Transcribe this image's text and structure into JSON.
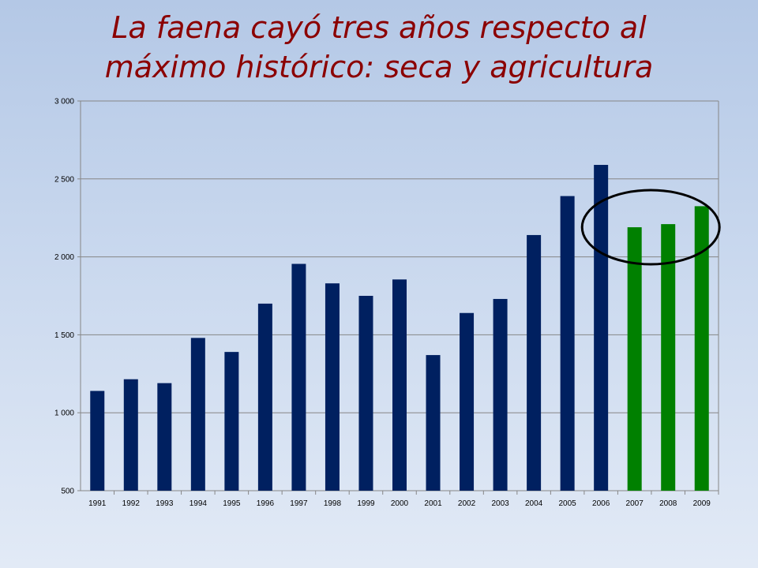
{
  "slide": {
    "title_line1": "La faena cayó tres años  respecto al",
    "title_line2": "máximo histórico: seca y agricultura"
  },
  "chart_data": {
    "type": "bar",
    "title": "",
    "xlabel": "",
    "ylabel": "",
    "categories": [
      "1991",
      "1992",
      "1993",
      "1994",
      "1995",
      "1996",
      "1997",
      "1998",
      "1999",
      "2000",
      "2001",
      "2002",
      "2003",
      "2004",
      "2005",
      "2006",
      "2007",
      "2008",
      "2009"
    ],
    "values": [
      1140,
      1215,
      1190,
      1480,
      1390,
      1700,
      1955,
      1830,
      1750,
      1855,
      1370,
      1640,
      1730,
      2140,
      2390,
      2590,
      2190,
      2210,
      2325
    ],
    "ylim": [
      500,
      3000
    ],
    "yticks": [
      500,
      1000,
      1500,
      2000,
      2500,
      3000
    ],
    "ytick_labels": [
      "500",
      "1 000",
      "1 500",
      "2 000",
      "2 500",
      "3 000"
    ],
    "grid": true,
    "legend": "none",
    "colors": {
      "default": "#002060",
      "highlight": "#008000",
      "grid": "#868686",
      "annotation": "#000000"
    },
    "highlight_categories": [
      "2007",
      "2008",
      "2009"
    ],
    "annotation": {
      "shape": "ellipse",
      "encloses": [
        "2007",
        "2008",
        "2009"
      ]
    }
  }
}
